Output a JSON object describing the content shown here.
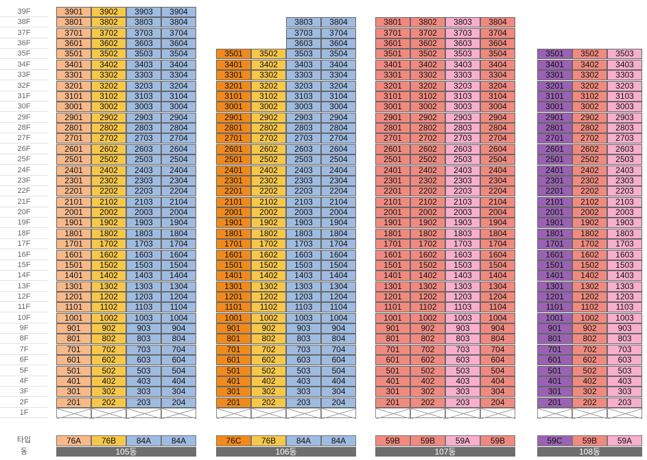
{
  "floors": [
    "39F",
    "38F",
    "37F",
    "36F",
    "35F",
    "34F",
    "33F",
    "32F",
    "31F",
    "30F",
    "29F",
    "28F",
    "27F",
    "26F",
    "25F",
    "24F",
    "23F",
    "22F",
    "21F",
    "20F",
    "19F",
    "18F",
    "17F",
    "16F",
    "15F",
    "14F",
    "13F",
    "12F",
    "11F",
    "10F",
    "9F",
    "8F",
    "7F",
    "6F",
    "5F",
    "4F",
    "3F",
    "2F",
    "1F"
  ],
  "type_label": "타입",
  "dong_label": "동",
  "colors": {
    "76A": "#F7B98A",
    "76B": "#F7C74A",
    "84A": "#9FBBE0",
    "76C": "#F08A1C",
    "59B": "#F08A80",
    "59A": "#F7AFCB",
    "59C": "#9A62B2"
  },
  "buildings": [
    {
      "dong": "105동",
      "columns": [
        {
          "line": 1,
          "type": "76A",
          "top": 39
        },
        {
          "line": 2,
          "type": "76B",
          "top": 39
        },
        {
          "line": 3,
          "type": "84A",
          "top": 39
        },
        {
          "line": 4,
          "type": "84A",
          "top": 39
        }
      ]
    },
    {
      "dong": "106동",
      "columns": [
        {
          "line": 1,
          "type": "76C",
          "top": 35
        },
        {
          "line": 2,
          "type": "76B",
          "top": 35
        },
        {
          "line": 3,
          "type": "84A",
          "top": 38
        },
        {
          "line": 4,
          "type": "84A",
          "top": 38
        }
      ]
    },
    {
      "dong": "107동",
      "columns": [
        {
          "line": 1,
          "type": "59B",
          "top": 38
        },
        {
          "line": 2,
          "type": "59B",
          "top": 38
        },
        {
          "line": 3,
          "type": "59A",
          "top": 38
        },
        {
          "line": 4,
          "type": "59B",
          "top": 38
        }
      ]
    },
    {
      "dong": "108동",
      "columns": [
        {
          "line": 1,
          "type": "59C",
          "top": 35
        },
        {
          "line": 2,
          "type": "59B",
          "top": 35
        },
        {
          "line": 3,
          "type": "59A",
          "top": 35
        }
      ]
    }
  ]
}
